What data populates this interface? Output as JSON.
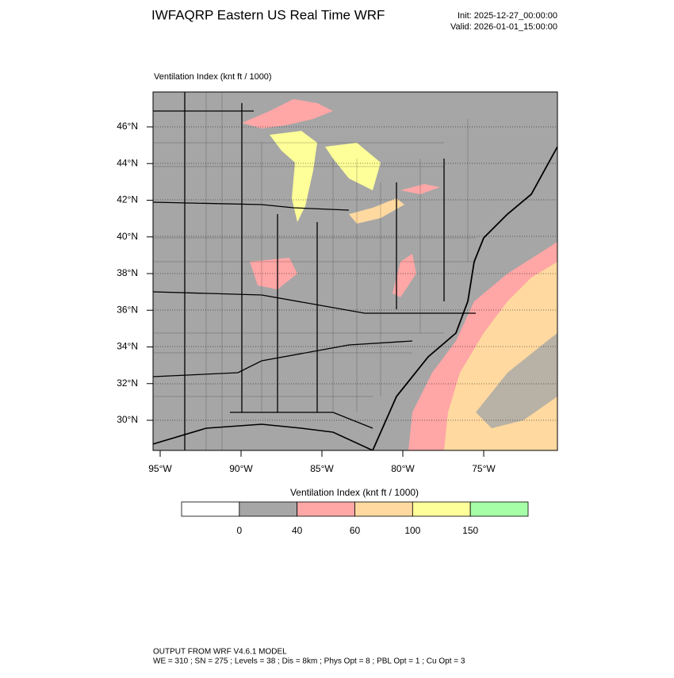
{
  "header": {
    "title": "IWFAQRP Eastern US Real Time WRF",
    "init": "Init: 2025-12-27_00:00:00",
    "valid": "Valid: 2026-01-01_15:00:00"
  },
  "map": {
    "field_label": "Ventilation Index   (knt ft / 1000)",
    "lat_labels": [
      "46°N",
      "44°N",
      "42°N",
      "40°N",
      "38°N",
      "36°N",
      "34°N",
      "32°N",
      "30°N"
    ],
    "lon_labels": [
      "95°W",
      "90°W",
      "85°W",
      "80°W",
      "75°W"
    ]
  },
  "colorbar": {
    "title": "Ventilation Index  (knt ft / 1000)",
    "colors": [
      "#ffffff",
      "#a6a6a6",
      "#ffa6a6",
      "#ffd9a0",
      "#ffff99",
      "#a6ffa6"
    ],
    "labels": [
      "0",
      "40",
      "60",
      "100",
      "150"
    ]
  },
  "footer": {
    "line1": "OUTPUT FROM WRF V4.6.1 MODEL",
    "line2": "WE = 310 ; SN = 275 ; Levels = 38 ; Dis = 8km ; Phys Opt = 8 ; PBL Opt = 1 ; Cu Opt = 3"
  }
}
